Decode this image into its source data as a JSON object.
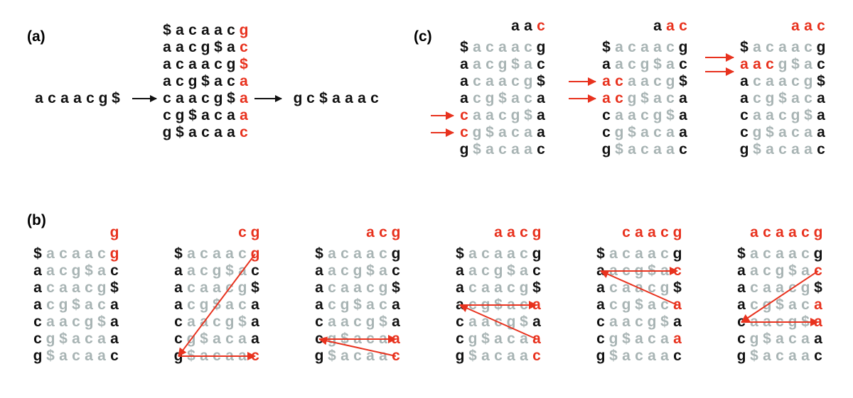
{
  "colors": {
    "black": "#111111",
    "gray": "#a8b4b4",
    "red": "#e8321e"
  },
  "panel_labels": {
    "a": "(a)",
    "b": "(b)",
    "c": "(c)"
  },
  "panel_a": {
    "input": "acaacg$",
    "output": "gc$aaac",
    "rotations": [
      "$acaacg",
      "aacg$ac",
      "acaacg$",
      "acg$aca",
      "caacg$a",
      "cg$acaa",
      "g$acaac"
    ]
  },
  "panel_b": {
    "headers": [
      "g",
      "cg",
      "acg",
      "aacg",
      "caacg",
      "acaacg"
    ],
    "rotations": [
      "$acaacg",
      "aacg$ac",
      "acaacg$",
      "acg$aca",
      "caacg$a",
      "cg$acaa",
      "g$acaac"
    ]
  },
  "panel_c": {
    "headers": [
      "aac",
      "aac",
      "aac"
    ],
    "rotations": [
      "$acaacg",
      "aacg$ac",
      "acaacg$",
      "acg$aca",
      "caacg$a",
      "cg$acaa",
      "g$acaac"
    ]
  }
}
